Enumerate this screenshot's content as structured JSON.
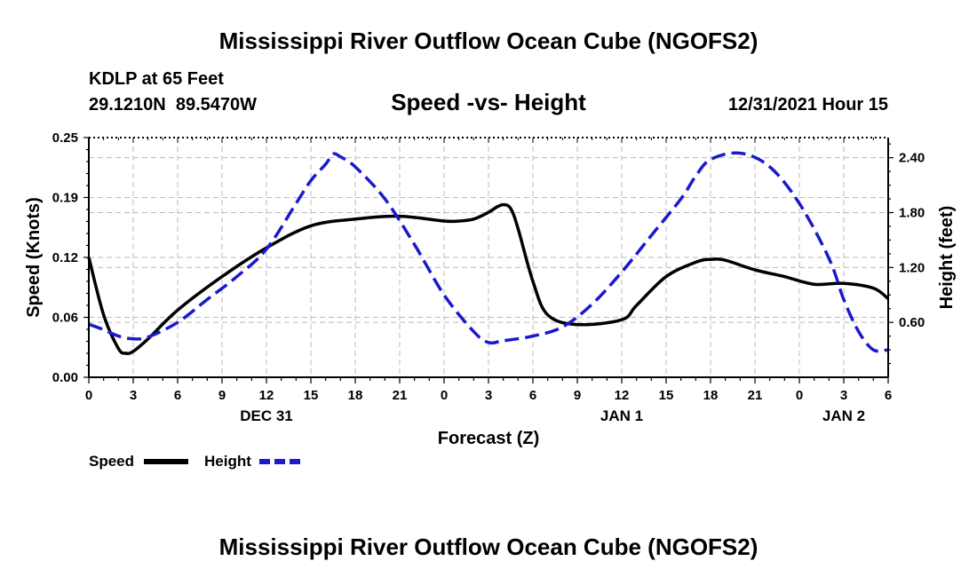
{
  "title": "Mississippi River Outflow Ocean Cube (NGOFS2)",
  "footer_title": "Mississippi River Outflow Ocean Cube (NGOFS2)",
  "station": {
    "name": "KDLP at 65 Feet",
    "coords": "29.1210N  89.5470W"
  },
  "subtitle": "Speed -vs- Height",
  "timestamp": "12/31/2021 Hour 15",
  "colors": {
    "speed": "#000000",
    "height": "#1a1acc",
    "grid": "#bbbbbb"
  },
  "legend": [
    {
      "label": "Speed",
      "series": "speed"
    },
    {
      "label": "Height",
      "series": "height"
    }
  ],
  "chart_data": {
    "type": "line",
    "xlabel": "Forecast (Z)",
    "ylabel_left": "Speed (Knots)",
    "ylabel_right": "Height (feet)",
    "xlim": [
      0,
      54
    ],
    "ylim_left": [
      0,
      0.25
    ],
    "ylim_right": [
      0,
      2.62
    ],
    "grid": true,
    "x_ticks": [
      0,
      3,
      6,
      9,
      12,
      15,
      18,
      21,
      24,
      27,
      30,
      33,
      36,
      39,
      42,
      45,
      48,
      51,
      54
    ],
    "x_tick_labels": [
      "0",
      "3",
      "6",
      "9",
      "12",
      "15",
      "18",
      "21",
      "0",
      "3",
      "6",
      "9",
      "12",
      "15",
      "18",
      "21",
      "0",
      "3",
      "6"
    ],
    "y_ticks_left": [
      0,
      0.0625,
      0.125,
      0.1875,
      0.25
    ],
    "y_tick_labels_left": [
      "0.00",
      "0.06",
      "0.12",
      "0.19",
      "0.25"
    ],
    "y_ticks_right": [
      0.6,
      1.2,
      1.8,
      2.4
    ],
    "y_tick_labels_right": [
      "0.60",
      "1.20",
      "1.80",
      "2.40"
    ],
    "date_labels": [
      {
        "x": 12,
        "label": "DEC 31"
      },
      {
        "x": 36,
        "label": "JAN 1"
      },
      {
        "x": 51,
        "label": "JAN 2"
      }
    ],
    "series": [
      {
        "name": "Speed",
        "axis": "left",
        "style": "solid",
        "x": [
          0,
          1,
          2,
          2.5,
          3,
          4,
          6,
          9,
          12,
          15,
          18,
          21,
          24,
          25,
          26,
          27,
          27.5,
          28,
          28.5,
          29,
          30,
          31,
          33,
          36,
          37,
          39,
          41,
          42,
          43,
          45,
          47,
          49,
          51,
          53,
          54
        ],
        "values": [
          0.125,
          0.065,
          0.03,
          0.025,
          0.027,
          0.04,
          0.07,
          0.105,
          0.135,
          0.158,
          0.165,
          0.168,
          0.163,
          0.163,
          0.165,
          0.172,
          0.177,
          0.18,
          0.176,
          0.155,
          0.1,
          0.065,
          0.055,
          0.06,
          0.075,
          0.105,
          0.12,
          0.123,
          0.122,
          0.112,
          0.105,
          0.097,
          0.098,
          0.093,
          0.082
        ]
      },
      {
        "name": "Height",
        "axis": "right",
        "style": "dashed",
        "x": [
          0,
          1,
          2,
          3,
          4,
          6,
          8,
          10,
          12,
          14,
          15,
          16,
          16.5,
          17,
          18,
          20,
          22,
          24,
          26,
          27,
          28,
          30,
          32,
          34,
          36,
          38,
          40,
          41,
          42,
          44,
          46,
          48,
          50,
          51,
          52,
          53,
          54
        ],
        "values": [
          0.58,
          0.52,
          0.45,
          0.42,
          0.44,
          0.6,
          0.85,
          1.1,
          1.4,
          1.9,
          2.15,
          2.33,
          2.44,
          2.41,
          2.3,
          1.95,
          1.45,
          0.9,
          0.5,
          0.38,
          0.4,
          0.45,
          0.55,
          0.8,
          1.15,
          1.55,
          1.95,
          2.2,
          2.38,
          2.45,
          2.3,
          1.9,
          1.3,
          0.85,
          0.5,
          0.3,
          0.3
        ]
      }
    ]
  }
}
